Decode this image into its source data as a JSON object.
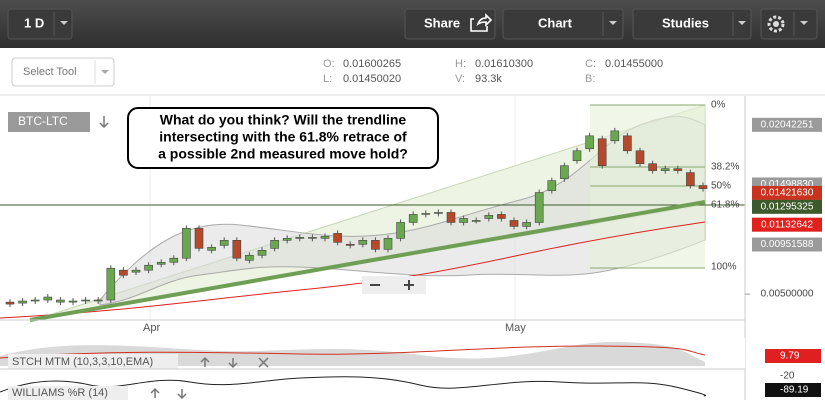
{
  "toolbar": {
    "interval": "1 D",
    "share": "Share",
    "chart": "Chart",
    "studies": "Studies"
  },
  "tool_select": "Select Tool",
  "quote": {
    "o_label": "O:",
    "o": "0.01600265",
    "l_label": "L:",
    "l": "0.01450020",
    "h_label": "H:",
    "h": "0.01610300",
    "v_label": "V:",
    "v": "93.3k",
    "c_label": "C:",
    "c": "0.01455000",
    "b_label": "B:"
  },
  "symbol": "BTC-LTC",
  "annotation": [
    "What do you think? Will the trendline",
    "intersecting with the 61.8% retrace of",
    "a possible 2nd measured move hold?"
  ],
  "fib_labels": [
    "0%",
    "38.2%",
    "50%",
    "61.8%",
    "100%"
  ],
  "x_labels": [
    "Apr",
    "May"
  ],
  "price_chart": {
    "type": "candlestick",
    "ylim": [
      0.00264,
      0.02305
    ],
    "price_tags": [
      {
        "value": 0.02042251,
        "label": "0.02042251",
        "color": "#9a9a9a"
      },
      {
        "value": 0.0149883,
        "label": "0.01498830",
        "color": "#9a9a9a"
      },
      {
        "value": 0.0142163,
        "label": "0.01421630",
        "color": "#c8321e"
      },
      {
        "value": 0.01295325,
        "label": "0.01295325",
        "color": "#3d5a2c"
      },
      {
        "value": 0.01132642,
        "label": "0.01132642",
        "color": "#e0201c"
      },
      {
        "value": 0.00951588,
        "label": "0.00951588",
        "color": "#9a9a9a"
      },
      {
        "value": 0.005,
        "label": "0.00500000",
        "color": null
      }
    ],
    "up_color": "#6aa84f",
    "down_color": "#b5492c",
    "open": [
      0.00427,
      0.00418,
      0.00437,
      0.00446,
      0.00427,
      0.00427,
      0.00437,
      0.00437,
      0.00446,
      0.00718,
      0.007,
      0.00718,
      0.00772,
      0.0079,
      0.00827,
      0.01099,
      0.00899,
      0.00944,
      0.0099,
      0.00808,
      0.00854,
      0.00917,
      0.0099,
      0.01008,
      0.01008,
      0.01008,
      0.01053,
      0.00954,
      0.00954,
      0.0099,
      0.00908,
      0.01008,
      0.01153,
      0.01226,
      0.01235,
      0.01244,
      0.01153,
      0.01171,
      0.01189,
      0.01226,
      0.01171,
      0.01117,
      0.01153,
      0.01443,
      0.01552,
      0.01715,
      0.01824,
      0.01915,
      0.01897,
      0.01942,
      0.01806,
      0.01688,
      0.01625,
      0.01643,
      0.01607,
      0.01489
    ],
    "close": [
      0.00409,
      0.00437,
      0.00446,
      0.00473,
      0.00446,
      0.00437,
      0.00446,
      0.00446,
      0.00736,
      0.00672,
      0.00718,
      0.00763,
      0.0079,
      0.00827,
      0.01099,
      0.00917,
      0.00926,
      0.0099,
      0.00827,
      0.00854,
      0.00899,
      0.0099,
      0.01008,
      0.01017,
      0.01017,
      0.01026,
      0.00972,
      0.00944,
      0.0099,
      0.00908,
      0.01008,
      0.01153,
      0.01226,
      0.01235,
      0.01244,
      0.01153,
      0.01189,
      0.01171,
      0.01217,
      0.01189,
      0.01117,
      0.01153,
      0.01425,
      0.01534,
      0.0167,
      0.01806,
      0.01942,
      0.0167,
      0.01987,
      0.01806,
      0.01688,
      0.01625,
      0.01643,
      0.01625,
      0.01489,
      0.01461
    ]
  },
  "indicators": {
    "stch": {
      "name": "STCH MTM (10,3,3,10,EMA)",
      "tag": "9.79"
    },
    "williams": {
      "name": "WILLIAMS %R (14)",
      "level": "-20",
      "tag": "-89.19"
    }
  }
}
